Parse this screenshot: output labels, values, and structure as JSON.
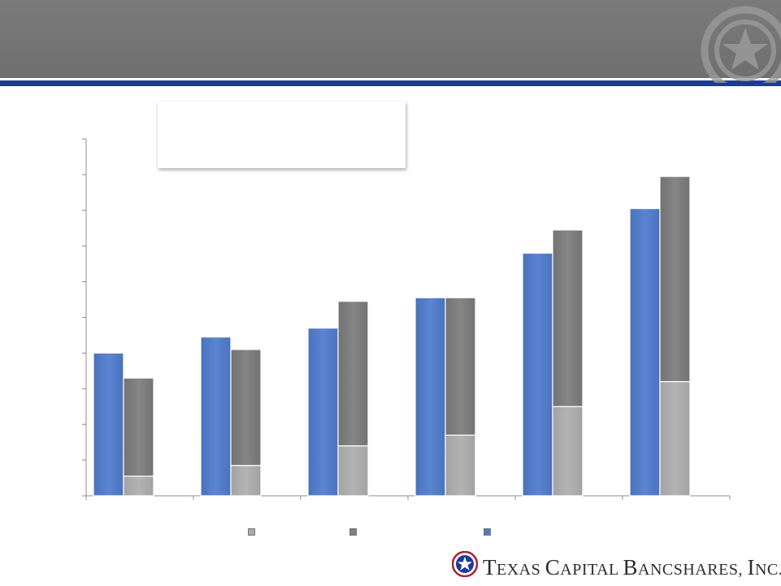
{
  "header": {
    "title": ""
  },
  "colors": {
    "header_band": "#777777",
    "header_rule": "#1d3a9a",
    "series_blue": "#4f79c6",
    "series_dark_gray": "#7e7e7e",
    "series_light_gray": "#a9a9a9"
  },
  "chart_data": {
    "type": "bar",
    "title": "",
    "xlabel": "",
    "ylabel": "",
    "categories": [
      "",
      "",
      "",
      "",
      "",
      ""
    ],
    "ylim": [
      0,
      10
    ],
    "y_ticks": [
      0,
      1,
      2,
      3,
      4,
      5,
      6,
      7,
      8,
      9,
      10
    ],
    "grid": false,
    "legend_position": "bottom",
    "stacked_groups": [
      {
        "stack": "blue",
        "series": [
          {
            "name": "",
            "color": "#4f79c6",
            "values": [
              4.0,
              4.45,
              4.7,
              5.55,
              6.8,
              8.05
            ]
          }
        ]
      },
      {
        "stack": "gray",
        "series": [
          {
            "name": "",
            "color": "#a9a9a9",
            "values": [
              0.55,
              0.85,
              1.4,
              1.7,
              2.5,
              3.2
            ]
          },
          {
            "name": "",
            "color": "#7e7e7e",
            "values": [
              2.75,
              3.25,
              4.05,
              3.85,
              4.95,
              5.75
            ]
          }
        ]
      }
    ],
    "legend": [
      {
        "name": "",
        "color": "#a9a9a9"
      },
      {
        "name": "",
        "color": "#7e7e7e"
      },
      {
        "name": "",
        "color": "#4f79c6"
      }
    ]
  },
  "callout": {
    "text": ""
  },
  "brand": {
    "initial_1": "T",
    "rest_1": "EXAS ",
    "initial_2": "C",
    "rest_2": "APITAL ",
    "initial_3": "B",
    "rest_3": "ANCSHARES, ",
    "initial_4": "I",
    "rest_4": "NC.",
    "registered": "®",
    "logo_icon": "star-seal-icon"
  },
  "decor": {
    "header_icon": "star-seal-icon"
  }
}
